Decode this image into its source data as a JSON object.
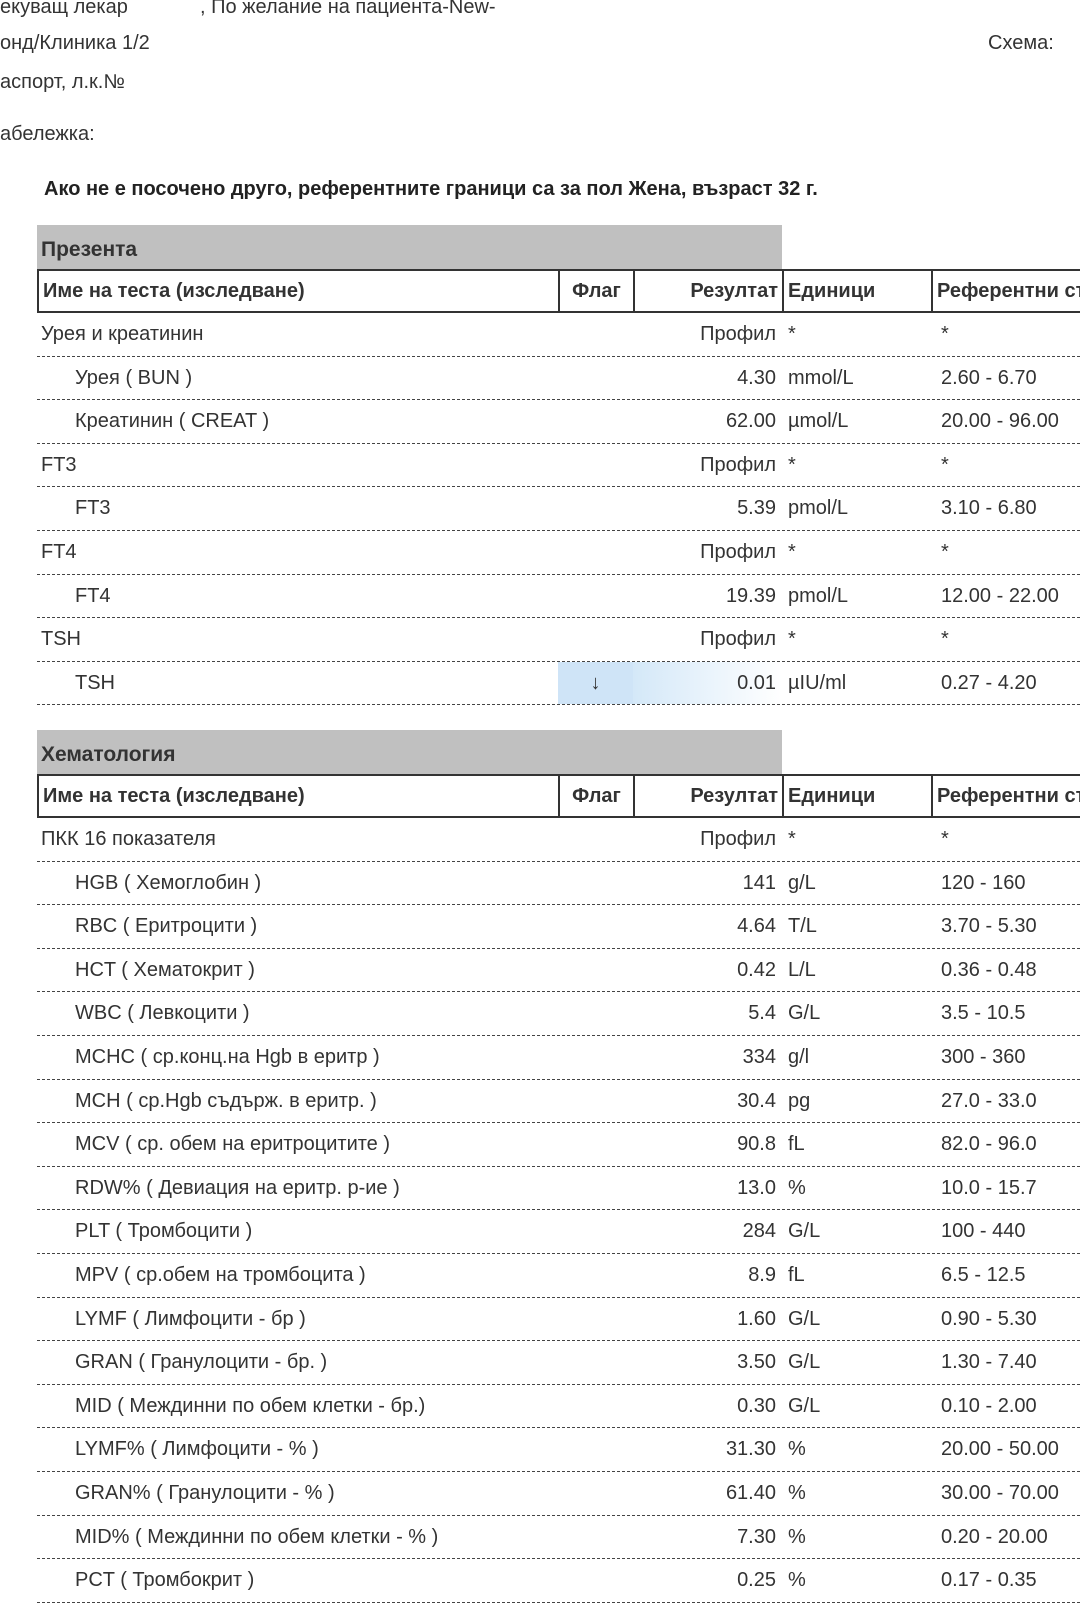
{
  "header": {
    "line1": "екуващ лекар",
    "line1b": ", По желание на пациента-New-",
    "line2": "онд/Клиника 1/2",
    "scheme": "Схема:",
    "line3": "аспорт, л.к.№",
    "line4": "абележка:",
    "reference_note": "Ако не е посочено друго, референтните граници са за пол Жена, възраст 32 г."
  },
  "columns": [
    "Име на теста (изследване)",
    "Флаг",
    "Резултат",
    "Единици",
    "Референтни ст"
  ],
  "colors": {
    "section_bg": "#c0c0c0",
    "flag_highlight": "#cfe4f7"
  },
  "sections": [
    {
      "title": "Презента",
      "rows": [
        {
          "name": "Урея и креатинин",
          "sub": false,
          "flag": "",
          "result": "Профил",
          "units": "*",
          "ref": "*"
        },
        {
          "name": "Урея ( BUN )",
          "sub": true,
          "flag": "",
          "result": "4.30",
          "units": "mmol/L",
          "ref": "2.60 - 6.70"
        },
        {
          "name": "Креатинин ( CREAT )",
          "sub": true,
          "flag": "",
          "result": "62.00",
          "units": "µmol/L",
          "ref": "20.00 - 96.00"
        },
        {
          "name": "FT3",
          "sub": false,
          "flag": "",
          "result": "Профил",
          "units": "*",
          "ref": "*"
        },
        {
          "name": "FT3",
          "sub": true,
          "flag": "",
          "result": "5.39",
          "units": "pmol/L",
          "ref": "3.10 - 6.80"
        },
        {
          "name": "FT4",
          "sub": false,
          "flag": "",
          "result": "Профил",
          "units": "*",
          "ref": "*"
        },
        {
          "name": "FT4",
          "sub": true,
          "flag": "",
          "result": "19.39",
          "units": "pmol/L",
          "ref": "12.00 - 22.00"
        },
        {
          "name": "TSH",
          "sub": false,
          "flag": "",
          "result": "Профил",
          "units": "*",
          "ref": "*"
        },
        {
          "name": "TSH",
          "sub": true,
          "flag": "↓",
          "result": "0.01",
          "units": "µIU/ml",
          "ref": "0.27 - 4.20"
        }
      ]
    },
    {
      "title": "Хематология",
      "rows": [
        {
          "name": "ПКК 16 показателя",
          "sub": false,
          "flag": "",
          "result": "Профил",
          "units": "*",
          "ref": "*"
        },
        {
          "name": "HGB ( Хемоглобин )",
          "sub": true,
          "flag": "",
          "result": "141",
          "units": "g/L",
          "ref": "120 - 160"
        },
        {
          "name": "RBC ( Еритроцити )",
          "sub": true,
          "flag": "",
          "result": "4.64",
          "units": "T/L",
          "ref": "3.70 - 5.30"
        },
        {
          "name": "HCT ( Хематокрит )",
          "sub": true,
          "flag": "",
          "result": "0.42",
          "units": "L/L",
          "ref": "0.36 - 0.48"
        },
        {
          "name": "WBC ( Левкоцити )",
          "sub": true,
          "flag": "",
          "result": "5.4",
          "units": "G/L",
          "ref": "3.5 - 10.5"
        },
        {
          "name": "MCHC ( ср.конц.на Hgb в еритр )",
          "sub": true,
          "flag": "",
          "result": "334",
          "units": "g/l",
          "ref": "300 - 360"
        },
        {
          "name": "MCH ( ср.Hgb съдърж. в еритр. )",
          "sub": true,
          "flag": "",
          "result": "30.4",
          "units": "pg",
          "ref": "27.0 - 33.0"
        },
        {
          "name": "MCV ( ср. обем на еритроцитите )",
          "sub": true,
          "flag": "",
          "result": "90.8",
          "units": "fL",
          "ref": "82.0 - 96.0"
        },
        {
          "name": "RDW% ( Девиация на еритр. р-ие )",
          "sub": true,
          "flag": "",
          "result": "13.0",
          "units": "%",
          "ref": "10.0 - 15.7"
        },
        {
          "name": "PLT ( Тромбоцити )",
          "sub": true,
          "flag": "",
          "result": "284",
          "units": "G/L",
          "ref": "100 - 440"
        },
        {
          "name": "MPV ( ср.обем на тромбоцита )",
          "sub": true,
          "flag": "",
          "result": "8.9",
          "units": "fL",
          "ref": "6.5 - 12.5"
        },
        {
          "name": "LYMF ( Лимфоцити - бр )",
          "sub": true,
          "flag": "",
          "result": "1.60",
          "units": "G/L",
          "ref": "0.90 - 5.30"
        },
        {
          "name": "GRAN ( Гранулоцити - бр. )",
          "sub": true,
          "flag": "",
          "result": "3.50",
          "units": "G/L",
          "ref": "1.30 - 7.40"
        },
        {
          "name": "MID ( Междинни по обем клетки - бр.)",
          "sub": true,
          "flag": "",
          "result": "0.30",
          "units": "G/L",
          "ref": "0.10 - 2.00"
        },
        {
          "name": "LYMF% ( Лимфоцити - % )",
          "sub": true,
          "flag": "",
          "result": "31.30",
          "units": "%",
          "ref": "20.00 - 50.00"
        },
        {
          "name": "GRAN% ( Гранулоцити - % )",
          "sub": true,
          "flag": "",
          "result": "61.40",
          "units": "%",
          "ref": "30.00 - 70.00"
        },
        {
          "name": "MID% ( Междинни по обем клетки - % )",
          "sub": true,
          "flag": "",
          "result": "7.30",
          "units": "%",
          "ref": "0.20 - 20.00"
        },
        {
          "name": "PCT ( Тромбокрит )",
          "sub": true,
          "flag": "",
          "result": "0.25",
          "units": "%",
          "ref": "0.17 - 0.35"
        }
      ]
    }
  ]
}
